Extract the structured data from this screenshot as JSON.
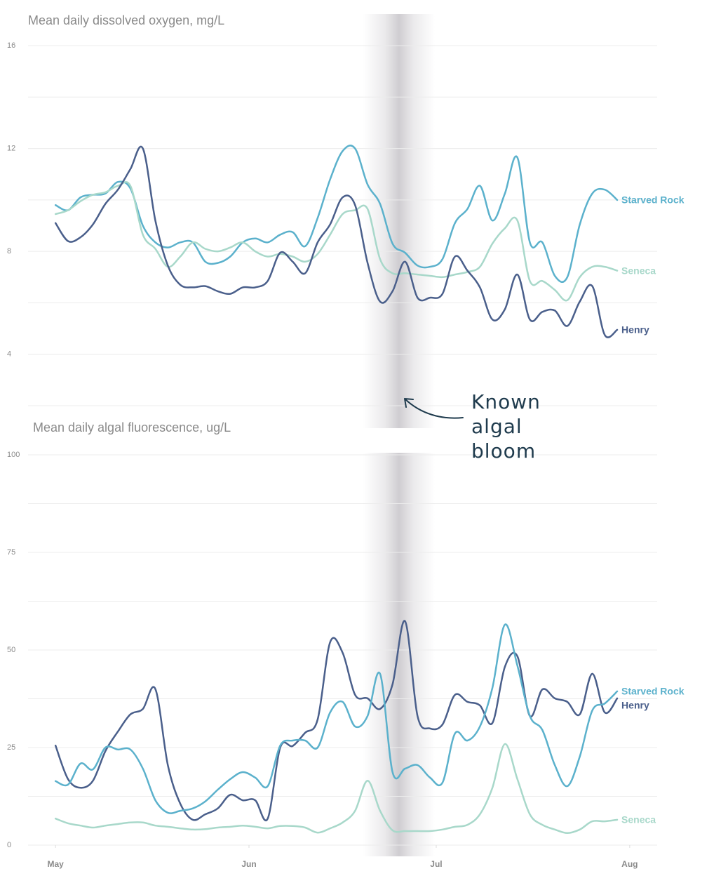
{
  "chart_data": [
    {
      "type": "line",
      "title": "Mean daily dissolved oxygen, mg/L",
      "x": [
        0,
        2,
        4,
        6,
        8,
        10,
        12,
        14,
        16,
        18,
        20,
        22,
        24,
        26,
        28,
        30,
        32,
        34,
        36,
        38,
        40,
        42,
        44,
        46,
        48,
        50,
        52,
        54,
        56,
        58,
        60,
        62,
        64,
        66,
        68,
        70,
        72,
        74,
        76,
        78,
        80,
        82,
        84,
        86,
        88,
        90
      ],
      "xlim": [
        -4.4,
        96.4
      ],
      "ylim": [
        2,
        16
      ],
      "yticks": [
        4,
        8,
        12,
        16
      ],
      "ygrid": [
        2,
        6,
        10,
        14
      ],
      "grid": true,
      "highlight": [
        49.3,
        60.8
      ],
      "annotation": [
        "Known",
        "algal",
        "bloom"
      ],
      "series": [
        {
          "name": "Starved Rock",
          "color": "#5bb1cc",
          "values": [
            9.8,
            9.6,
            10.1,
            10.2,
            10.25,
            10.7,
            10.45,
            9.0,
            8.35,
            8.15,
            8.35,
            8.35,
            7.6,
            7.55,
            7.8,
            8.35,
            8.5,
            8.35,
            8.65,
            8.75,
            8.2,
            9.3,
            10.8,
            11.9,
            12.0,
            10.6,
            9.85,
            8.3,
            7.95,
            7.45,
            7.4,
            7.7,
            9.1,
            9.65,
            10.55,
            9.2,
            10.25,
            11.65,
            8.35,
            8.35,
            7.05,
            7.0,
            9.05,
            10.25,
            10.4,
            10.0
          ]
        },
        {
          "name": "Seneca",
          "color": "#a8d8ca",
          "values": [
            9.45,
            9.6,
            9.95,
            10.2,
            10.3,
            10.55,
            10.55,
            8.65,
            8.1,
            7.4,
            7.8,
            8.35,
            8.1,
            8.0,
            8.15,
            8.35,
            8.0,
            7.8,
            7.9,
            7.8,
            7.6,
            7.9,
            8.65,
            9.45,
            9.6,
            9.65,
            7.7,
            7.15,
            7.15,
            7.1,
            7.05,
            7.0,
            7.1,
            7.2,
            7.4,
            8.3,
            8.9,
            9.2,
            6.85,
            6.85,
            6.5,
            6.1,
            7.0,
            7.4,
            7.4,
            7.25
          ]
        },
        {
          "name": "Henry",
          "color": "#4a5f8b",
          "values": [
            9.1,
            8.4,
            8.55,
            9.05,
            9.85,
            10.4,
            11.2,
            12.0,
            9.2,
            7.45,
            6.7,
            6.6,
            6.65,
            6.45,
            6.35,
            6.6,
            6.6,
            6.85,
            7.95,
            7.6,
            7.15,
            8.35,
            9.05,
            10.1,
            9.8,
            7.55,
            6.05,
            6.45,
            7.6,
            6.2,
            6.2,
            6.35,
            7.8,
            7.25,
            6.6,
            5.35,
            5.75,
            7.1,
            5.35,
            5.65,
            5.7,
            5.1,
            6.05,
            6.65,
            4.75,
            4.95
          ]
        }
      ]
    },
    {
      "type": "line",
      "title": "Mean daily algal fluorescence, ug/L",
      "x": [
        0,
        2,
        4,
        6,
        8,
        10,
        12,
        14,
        16,
        18,
        20,
        22,
        24,
        26,
        28,
        30,
        32,
        34,
        36,
        38,
        40,
        42,
        44,
        46,
        48,
        50,
        52,
        54,
        56,
        58,
        60,
        62,
        64,
        66,
        68,
        70,
        72,
        74,
        76,
        78,
        80,
        82,
        84,
        86,
        88,
        90
      ],
      "xlim": [
        -4.4,
        96.4
      ],
      "xticks": [
        {
          "value": 0,
          "label": "May"
        },
        {
          "value": 31,
          "label": "Jun"
        },
        {
          "value": 61,
          "label": "Jul"
        },
        {
          "value": 92,
          "label": "Aug"
        }
      ],
      "ylim": [
        0,
        100
      ],
      "yticks": [
        0,
        25,
        50,
        75,
        100
      ],
      "ygrid": [
        12.5,
        37.5,
        62.5,
        87.5
      ],
      "grid": true,
      "highlight": [
        49.3,
        60.8
      ],
      "series": [
        {
          "name": "Henry",
          "color": "#4a5f8b",
          "values": [
            25.5,
            16.9,
            14.7,
            16.5,
            24.1,
            29.1,
            33.5,
            34.9,
            40,
            20.5,
            10.6,
            6.5,
            7.9,
            9.4,
            12.9,
            11.5,
            11.5,
            6.8,
            25.0,
            25.4,
            28.8,
            32.2,
            52.0,
            49.3,
            38.5,
            37.6,
            34.9,
            41.2,
            57.4,
            33.1,
            29.9,
            30.9,
            38.5,
            36.7,
            35.8,
            31.3,
            45.7,
            48.4,
            33.1,
            39.9,
            37.6,
            36.7,
            33.5,
            43.9,
            34.0,
            37.6
          ]
        },
        {
          "name": "Starved Rock",
          "color": "#5bb1cc",
          "values": [
            16.4,
            15.5,
            20.9,
            19.4,
            25.0,
            24.5,
            24.5,
            19.6,
            11.5,
            8.3,
            8.8,
            9.4,
            11.2,
            14.2,
            16.9,
            18.7,
            17.3,
            15.1,
            25.5,
            26.8,
            26.8,
            25.0,
            34.0,
            36.7,
            30.4,
            33.1,
            43.9,
            18.7,
            19.6,
            20.5,
            17.3,
            16.0,
            28.6,
            26.8,
            30.4,
            40.3,
            56.5,
            46.0,
            33.1,
            29.5,
            20.5,
            15.1,
            22.7,
            34.5,
            36.3,
            39.4
          ]
        },
        {
          "name": "Seneca",
          "color": "#a8d8ca",
          "values": [
            6.8,
            5.6,
            5.0,
            4.5,
            5.0,
            5.4,
            5.8,
            5.8,
            5.0,
            4.7,
            4.3,
            4.0,
            4.1,
            4.5,
            4.7,
            5.0,
            4.7,
            4.3,
            4.9,
            4.9,
            4.5,
            3.2,
            4.3,
            5.8,
            8.8,
            16.5,
            8.8,
            3.8,
            3.6,
            3.6,
            3.6,
            4.0,
            4.7,
            5.2,
            7.9,
            14.7,
            25.9,
            16.9,
            7.9,
            5.2,
            4.0,
            3.1,
            4.0,
            6.1,
            6.1,
            6.5
          ]
        }
      ]
    }
  ]
}
